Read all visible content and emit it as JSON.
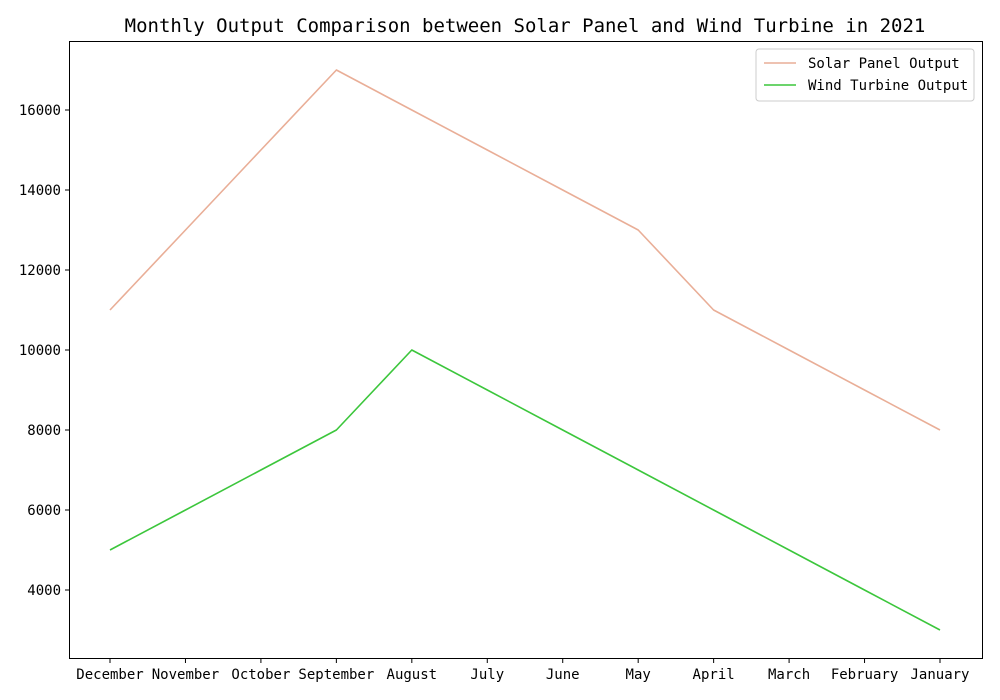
{
  "chart_data": {
    "type": "line",
    "title": "Monthly Output Comparison between Solar Panel and Wind Turbine in 2021",
    "xlabel": "",
    "ylabel": "",
    "categories": [
      "December",
      "November",
      "October",
      "September",
      "August",
      "July",
      "June",
      "May",
      "April",
      "March",
      "February",
      "January"
    ],
    "series": [
      {
        "name": "Solar Panel Output",
        "color": "#e9ae97",
        "values": [
          11000,
          13000,
          15000,
          17000,
          16000,
          15000,
          14000,
          13000,
          11000,
          10000,
          9000,
          8000
        ]
      },
      {
        "name": "Wind Turbine Output",
        "color": "#3cc63c",
        "values": [
          5000,
          6000,
          7000,
          8000,
          10000,
          9000,
          8000,
          7000,
          6000,
          5000,
          4000,
          3000
        ]
      }
    ],
    "ylim": [
      2300,
      17700
    ],
    "yticks": [
      4000,
      6000,
      8000,
      10000,
      12000,
      14000,
      16000
    ],
    "grid": false,
    "legend_position": "top-right"
  }
}
